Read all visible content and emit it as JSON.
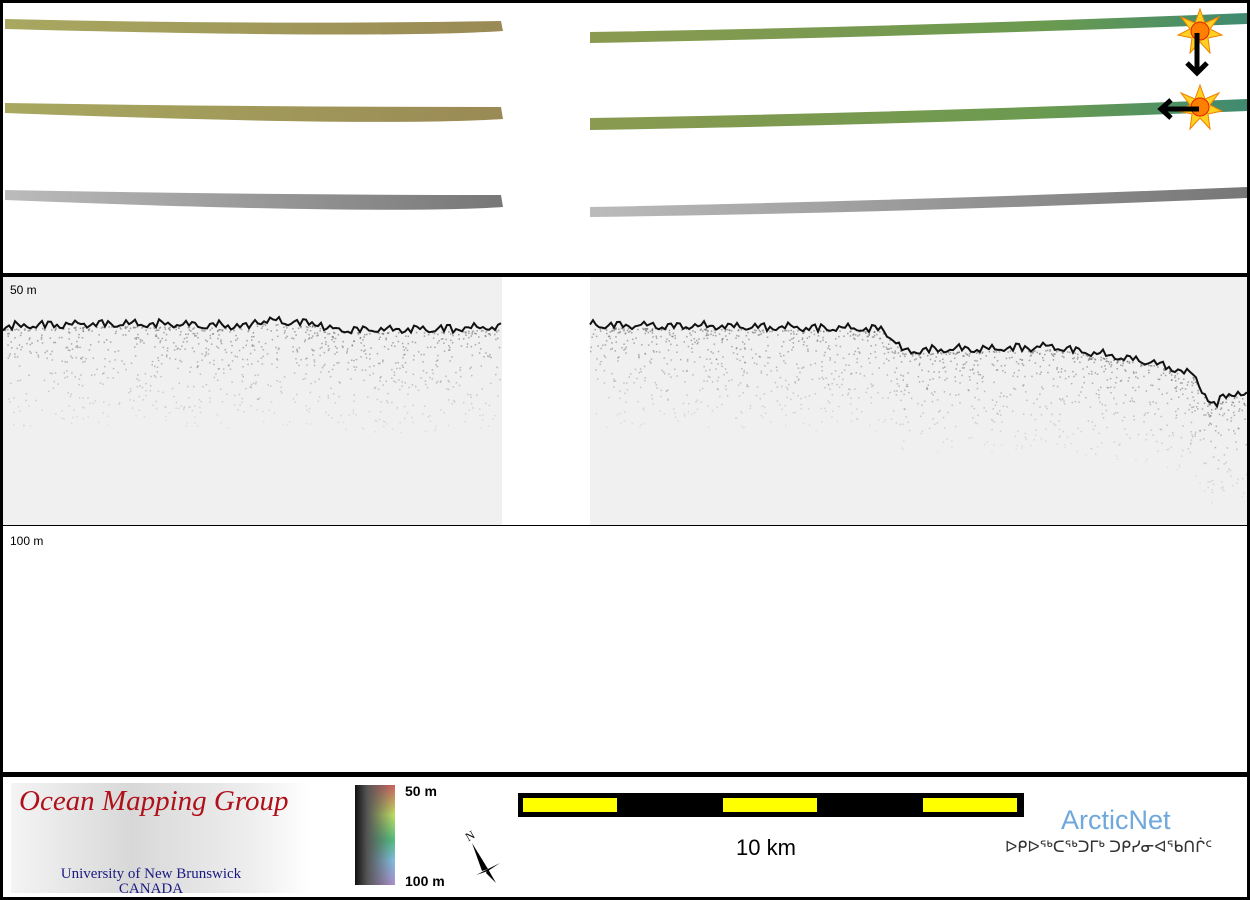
{
  "profile": {
    "top_depth_label": "50 m",
    "bottom_depth_label": "100 m"
  },
  "footer": {
    "logo": {
      "title": "Ocean Mapping Group",
      "subtitle1": "University of New Brunswick",
      "subtitle2": "CANADA"
    },
    "colorbar": {
      "min_label": "50 m",
      "max_label": "100 m"
    },
    "compass": {
      "north_label": "N"
    },
    "scale_bar": {
      "label": "10 km",
      "colors": [
        "#ffff00",
        "#000000"
      ]
    },
    "partner": {
      "name": "ArcticNet",
      "syllabics": "ᐅᑭᐅᖅᑕᖅᑐᒥᒃ ᑐᑭᓯᓂᐊᖃᑎᒌᑦ"
    }
  },
  "icons": [
    "sun-icon",
    "arrow-down-icon",
    "sun-icon",
    "arrow-left-icon"
  ],
  "colors": {
    "swath_left": "#a09a50",
    "swath_right": "#4f9a5a",
    "echo": "#111111"
  }
}
